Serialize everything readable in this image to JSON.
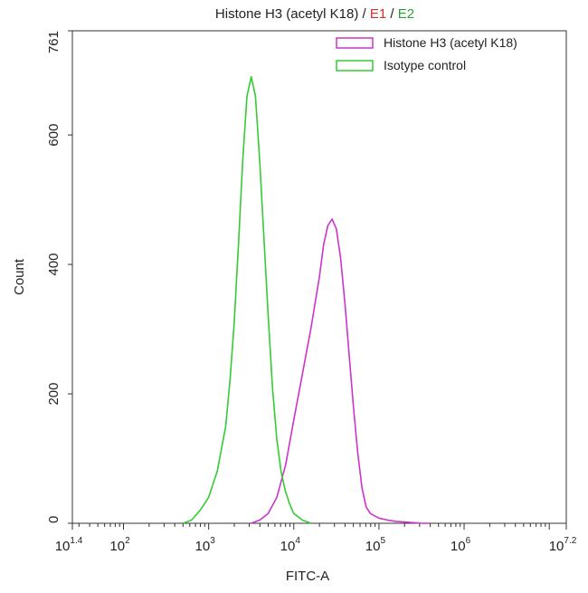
{
  "chart_data": {
    "type": "line",
    "title_parts": [
      {
        "text": "Histone H3 (acetyl K18)",
        "color": "#222222"
      },
      {
        "text": " / ",
        "color": "#222222"
      },
      {
        "text": "E1",
        "color": "#d0312d"
      },
      {
        "text": " / ",
        "color": "#222222"
      },
      {
        "text": "E2",
        "color": "#2e9e3a"
      }
    ],
    "xlabel": "FITC-A",
    "ylabel": "Count",
    "x_scale": "log10",
    "xlim": [
      25.1,
      15849000
    ],
    "ylim": [
      0,
      761
    ],
    "x_ticks": [
      {
        "value": 25.1,
        "base": "10",
        "exp": "1.4"
      },
      {
        "value": 100,
        "base": "10",
        "exp": "2"
      },
      {
        "value": 1000,
        "base": "10",
        "exp": "3"
      },
      {
        "value": 10000,
        "base": "10",
        "exp": "4"
      },
      {
        "value": 100000,
        "base": "10",
        "exp": "5"
      },
      {
        "value": 1000000,
        "base": "10",
        "exp": "6"
      },
      {
        "value": 15849000,
        "base": "10",
        "exp": "7.2"
      }
    ],
    "y_ticks": [
      0,
      200,
      400,
      600,
      761
    ],
    "legend_position": "top-right",
    "series": [
      {
        "name": "Histone H3 (acetyl K18)",
        "color": "#cc33cc",
        "x": [
          3162,
          4000,
          5000,
          6310,
          8000,
          10000,
          12590,
          15850,
          19950,
          22390,
          25120,
          28180,
          31620,
          35480,
          39810,
          44670,
          50120,
          56230,
          63100,
          70790,
          79430,
          100000,
          125900,
          158500,
          199500,
          251200,
          316200,
          398100
        ],
        "y": [
          0,
          5,
          15,
          40,
          90,
          160,
          230,
          300,
          380,
          430,
          460,
          470,
          455,
          410,
          340,
          260,
          180,
          110,
          55,
          25,
          15,
          8,
          5,
          3,
          2,
          1,
          0,
          0
        ]
      },
      {
        "name": "Isotype control",
        "color": "#33cc33",
        "x": [
          501,
          631,
          794,
          1000,
          1259,
          1585,
          1778,
          1995,
          2239,
          2512,
          2818,
          3162,
          3548,
          3981,
          4467,
          5012,
          5623,
          6310,
          7079,
          7943,
          8913,
          10000,
          12590,
          15850
        ],
        "y": [
          0,
          5,
          20,
          40,
          80,
          150,
          220,
          310,
          430,
          560,
          660,
          690,
          660,
          560,
          440,
          320,
          210,
          130,
          80,
          50,
          30,
          15,
          5,
          0
        ]
      }
    ]
  }
}
